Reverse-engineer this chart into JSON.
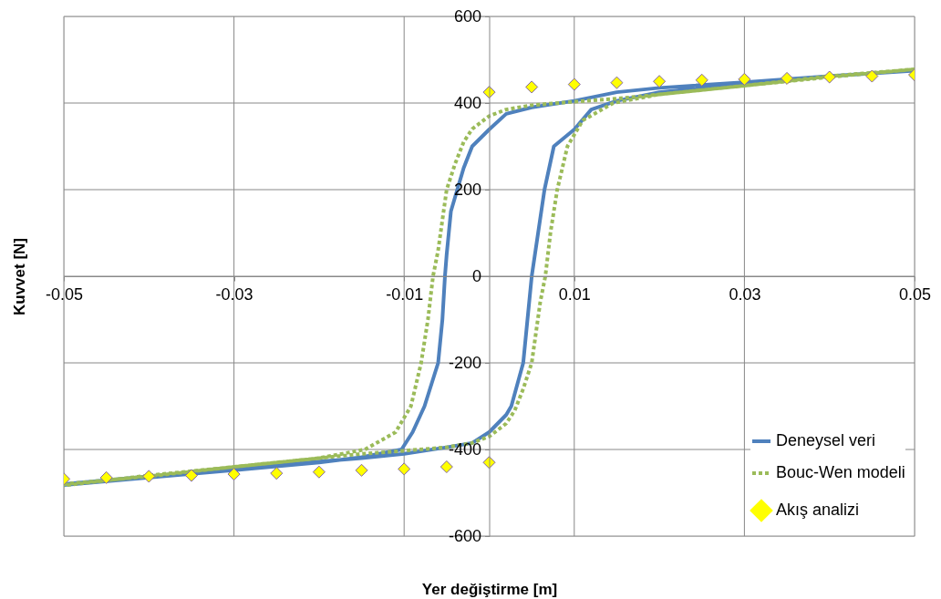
{
  "chart_data": {
    "type": "line",
    "xlabel": "Yer değiştirme [m]",
    "ylabel": "Kuvvet [N]",
    "xlim": [
      -0.05,
      0.05
    ],
    "xticks": [
      -0.05,
      -0.03,
      -0.01,
      0.01,
      0.03,
      0.05
    ],
    "ylim": [
      -600,
      600
    ],
    "yticks": [
      -600,
      -400,
      -200,
      0,
      200,
      400,
      600
    ],
    "grid": true,
    "legend": "bottom right",
    "series": [
      {
        "name": "Deneysel veri",
        "line_style": "solid",
        "color": "#4f81bd",
        "x": [
          -0.05,
          -0.04,
          -0.03,
          -0.02,
          -0.015,
          -0.01,
          -0.005,
          -0.002,
          0,
          0.002,
          0.0026,
          0.004,
          0.005,
          0.0065,
          0.0076,
          0.01,
          0.012,
          0.015,
          0.02,
          0.03,
          0.04,
          0.05,
          0.04,
          0.03,
          0.02,
          0.015,
          0.01,
          0.005,
          0.002,
          0,
          -0.002,
          -0.003,
          -0.0045,
          -0.005,
          -0.0052,
          -0.0055,
          -0.006,
          -0.0076,
          -0.009,
          -0.0103,
          -0.015,
          -0.02,
          -0.03,
          -0.04,
          -0.05
        ],
        "values": [
          -480,
          -462,
          -445,
          -428,
          -420,
          -410,
          -395,
          -385,
          -360,
          -320,
          -300,
          -200,
          0,
          200,
          300,
          339,
          385,
          405,
          425,
          445,
          462,
          475,
          462,
          448,
          435,
          425,
          405,
          390,
          375,
          339,
          300,
          250,
          150,
          50,
          0,
          -100,
          -200,
          -300,
          -360,
          -400,
          -418,
          -430,
          -448,
          -465,
          -482
        ]
      },
      {
        "name": "Bouc-Wen modeli",
        "line_style": "dotted",
        "color": "#9bbb59",
        "x": [
          -0.05,
          -0.04,
          -0.03,
          -0.02,
          -0.015,
          -0.01,
          -0.005,
          -0.002,
          0,
          0.002,
          0.003,
          0.004,
          0.005,
          0.0055,
          0.006,
          0.0066,
          0.0072,
          0.008,
          0.0092,
          0.011,
          0.0146,
          0.02,
          0.03,
          0.04,
          0.05,
          0.04,
          0.03,
          0.02,
          0.015,
          0.01,
          0.005,
          0.002,
          0,
          -0.002,
          -0.003,
          -0.004,
          -0.005,
          -0.0055,
          -0.006,
          -0.0066,
          -0.0072,
          -0.008,
          -0.0092,
          -0.011,
          -0.0146,
          -0.02,
          -0.03,
          -0.04,
          -0.05
        ],
        "values": [
          -480,
          -462,
          -440,
          -420,
          -410,
          -403,
          -395,
          -385,
          -370,
          -340,
          -310,
          -260,
          -200,
          -130,
          -60,
          0,
          100,
          200,
          300,
          360,
          400,
          420,
          440,
          460,
          478,
          462,
          440,
          420,
          410,
          403,
          395,
          385,
          370,
          340,
          310,
          260,
          200,
          130,
          60,
          0,
          -100,
          -200,
          -300,
          -360,
          -400,
          -420,
          -440,
          -460,
          -483
        ]
      },
      {
        "name": "Akış analizi",
        "type": "scatter",
        "marker": "diamond",
        "color": "#ffff00",
        "x": [
          -0.05,
          -0.045,
          -0.04,
          -0.035,
          -0.03,
          -0.025,
          -0.02,
          -0.015,
          -0.01,
          -0.005,
          0,
          0,
          0.005,
          0.01,
          0.015,
          0.02,
          0.025,
          0.03,
          0.035,
          0.04,
          0.045,
          0.05
        ],
        "values": [
          -468,
          -465,
          -462,
          -460,
          -457,
          -455,
          -452,
          -448,
          -445,
          -440,
          -430,
          425,
          437,
          443,
          447,
          450,
          453,
          455,
          457,
          460,
          462,
          465
        ]
      }
    ]
  }
}
